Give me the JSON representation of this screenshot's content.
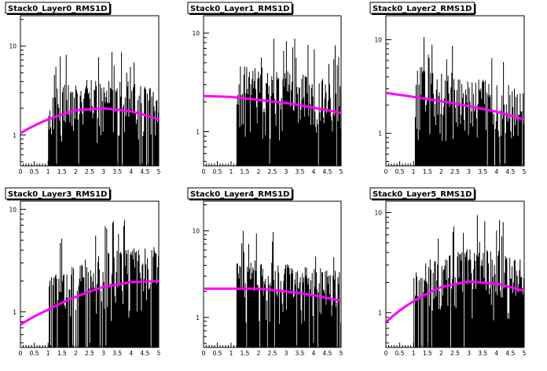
{
  "chart_data": [
    {
      "type": "histogram",
      "title": "Stack0_Layer0_RMS1D",
      "yscale": "log",
      "xlim": [
        0,
        5
      ],
      "ylim": [
        0.45,
        22
      ],
      "x_ticks": [
        "0",
        "0.5",
        "1",
        "1.5",
        "2",
        "2.5",
        "3",
        "3.5",
        "4",
        "4.5",
        "5"
      ],
      "y_ticks": [
        {
          "value": 1,
          "label": "1"
        },
        {
          "value": 10,
          "label": "10"
        }
      ],
      "data_range": [
        1.0,
        5.0
      ],
      "fit_curve": {
        "color": "#ff00ff",
        "points": [
          [
            0,
            1.05
          ],
          [
            1,
            1.5
          ],
          [
            2,
            1.9
          ],
          [
            3,
            2.0
          ],
          [
            4,
            1.85
          ],
          [
            5,
            1.5
          ]
        ]
      }
    },
    {
      "type": "histogram",
      "title": "Stack0_Layer1_RMS1D",
      "yscale": "log",
      "xlim": [
        0,
        5
      ],
      "ylim": [
        0.45,
        15
      ],
      "x_ticks": [
        "0",
        "0.5",
        "1",
        "1.5",
        "2",
        "2.5",
        "3",
        "3.5",
        "4",
        "4.5",
        "5"
      ],
      "y_ticks": [
        {
          "value": 1,
          "label": "1"
        },
        {
          "value": 10,
          "label": "10"
        }
      ],
      "data_range": [
        1.2,
        5.0
      ],
      "fit_curve": {
        "color": "#ff00ff",
        "points": [
          [
            0,
            2.3
          ],
          [
            1,
            2.25
          ],
          [
            2,
            2.1
          ],
          [
            3,
            1.95
          ],
          [
            4,
            1.75
          ],
          [
            5,
            1.55
          ]
        ]
      }
    },
    {
      "type": "histogram",
      "title": "Stack0_Layer2_RMS1D",
      "yscale": "log",
      "xlim": [
        0,
        5
      ],
      "ylim": [
        0.45,
        18
      ],
      "x_ticks": [
        "0",
        "0.5",
        "1",
        "1.5",
        "2",
        "2.5",
        "3",
        "3.5",
        "4",
        "4.5",
        "5"
      ],
      "y_ticks": [
        {
          "value": 1,
          "label": "1"
        },
        {
          "value": 10,
          "label": "10"
        }
      ],
      "data_range": [
        1.05,
        5.0
      ],
      "fit_curve": {
        "color": "#ff00ff",
        "points": [
          [
            0,
            2.7
          ],
          [
            1,
            2.45
          ],
          [
            2,
            2.2
          ],
          [
            3,
            1.95
          ],
          [
            4,
            1.7
          ],
          [
            5,
            1.4
          ]
        ]
      }
    },
    {
      "type": "histogram",
      "title": "Stack0_Layer3_RMS1D",
      "yscale": "log",
      "xlim": [
        0,
        5
      ],
      "ylim": [
        0.45,
        12
      ],
      "x_ticks": [
        "0",
        "0.5",
        "1",
        "1.5",
        "2",
        "2.5",
        "3",
        "3.5",
        "4",
        "4.5",
        "5"
      ],
      "y_ticks": [
        {
          "value": 1,
          "label": "1"
        },
        {
          "value": 10,
          "label": "10"
        }
      ],
      "data_range": [
        1.0,
        5.0
      ],
      "fit_curve": {
        "color": "#ff00ff",
        "points": [
          [
            0,
            0.75
          ],
          [
            1,
            1.05
          ],
          [
            2,
            1.4
          ],
          [
            3,
            1.75
          ],
          [
            4,
            1.95
          ],
          [
            5,
            2.0
          ]
        ]
      }
    },
    {
      "type": "histogram",
      "title": "Stack0_Layer4_RMS1D",
      "yscale": "log",
      "xlim": [
        0,
        5
      ],
      "ylim": [
        0.45,
        22
      ],
      "x_ticks": [
        "0",
        "0.5",
        "1",
        "1.5",
        "2",
        "2.5",
        "3",
        "3.5",
        "4",
        "4.5",
        "5"
      ],
      "y_ticks": [
        {
          "value": 1,
          "label": "1"
        },
        {
          "value": 10,
          "label": "10"
        }
      ],
      "data_range": [
        1.2,
        5.0
      ],
      "fit_curve": {
        "color": "#ff00ff",
        "points": [
          [
            0,
            2.15
          ],
          [
            1,
            2.15
          ],
          [
            2,
            2.15
          ],
          [
            3,
            2.0
          ],
          [
            4,
            1.8
          ],
          [
            5,
            1.55
          ]
        ]
      }
    },
    {
      "type": "histogram",
      "title": "Stack0_Layer5_RMS1D",
      "yscale": "log",
      "xlim": [
        0,
        5
      ],
      "ylim": [
        0.45,
        13
      ],
      "x_ticks": [
        "0",
        "0.5",
        "1",
        "1.5",
        "2",
        "2.5",
        "3",
        "3.5",
        "4",
        "4.5",
        "5"
      ],
      "y_ticks": [
        {
          "value": 1,
          "label": "1"
        },
        {
          "value": 10,
          "label": "10"
        }
      ],
      "data_range": [
        1.0,
        5.0
      ],
      "fit_curve": {
        "color": "#ff00ff",
        "points": [
          [
            0,
            0.8
          ],
          [
            1,
            1.3
          ],
          [
            2,
            1.8
          ],
          [
            3,
            2.05
          ],
          [
            4,
            1.95
          ],
          [
            5,
            1.65
          ]
        ]
      }
    }
  ]
}
